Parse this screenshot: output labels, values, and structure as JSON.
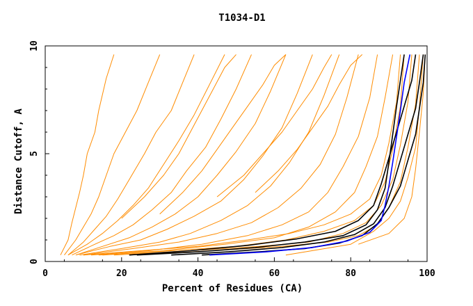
{
  "chart_data": {
    "type": "line",
    "title": "T1034-D1",
    "xlabel": "Percent of Residues (CA)",
    "ylabel": "Distance Cutoff, A",
    "xlim": [
      0,
      100
    ],
    "ylim": [
      0,
      10
    ],
    "x_ticks": [
      "0",
      "20",
      "40",
      "60",
      "80",
      "100"
    ],
    "y_ticks": [
      "0",
      "5",
      "10"
    ],
    "grid": false,
    "colors": {
      "background_models": "#ff8c00",
      "highlight_blue": "#0000ff",
      "highlight_black": "#000000"
    },
    "series": [
      {
        "color": "#ff8c00",
        "x": [
          4,
          6,
          7,
          8,
          9,
          10,
          11,
          13,
          14,
          16,
          18
        ],
        "y": [
          0.3,
          1,
          1.8,
          2.5,
          3.2,
          4,
          5,
          6,
          7,
          8.5,
          9.6
        ]
      },
      {
        "color": "#ff8c00",
        "x": [
          5,
          8,
          10,
          12,
          14,
          16,
          18,
          21,
          24,
          27,
          30
        ],
        "y": [
          0.3,
          1,
          1.6,
          2.2,
          3,
          4,
          5,
          6,
          7,
          8.3,
          9.6
        ]
      },
      {
        "color": "#ff8c00",
        "x": [
          6,
          10,
          13,
          16,
          19,
          22,
          26,
          29,
          33,
          36,
          39
        ],
        "y": [
          0.3,
          0.9,
          1.5,
          2.1,
          2.9,
          3.8,
          5,
          6,
          7,
          8.3,
          9.6
        ]
      },
      {
        "color": "#ff8c00",
        "x": [
          6,
          11,
          15,
          19,
          23,
          27,
          31,
          35,
          39,
          43,
          47
        ],
        "y": [
          0.3,
          0.8,
          1.3,
          1.9,
          2.6,
          3.4,
          4.5,
          5.6,
          6.8,
          8.2,
          9.6
        ]
      },
      {
        "color": "#ff8c00",
        "x": [
          7,
          13,
          18,
          23,
          28,
          33,
          37,
          42,
          46,
          50,
          54
        ],
        "y": [
          0.3,
          0.8,
          1.2,
          1.7,
          2.4,
          3.2,
          4.2,
          5.3,
          6.6,
          8,
          9.6
        ]
      },
      {
        "color": "#ff8c00",
        "x": [
          8,
          15,
          22,
          28,
          34,
          40,
          45,
          50,
          55,
          59,
          63
        ],
        "y": [
          0.3,
          0.7,
          1.1,
          1.6,
          2.2,
          3,
          4,
          5.1,
          6.4,
          7.9,
          9.6
        ]
      },
      {
        "color": "#ff8c00",
        "x": [
          8,
          17,
          25,
          32,
          39,
          46,
          52,
          57,
          62,
          66,
          70
        ],
        "y": [
          0.3,
          0.7,
          1,
          1.5,
          2.1,
          2.8,
          3.8,
          4.9,
          6.2,
          7.8,
          9.6
        ]
      },
      {
        "color": "#ff8c00",
        "x": [
          9,
          20,
          30,
          38,
          46,
          53,
          59,
          64,
          69,
          73,
          77
        ],
        "y": [
          0.3,
          0.6,
          0.9,
          1.3,
          1.9,
          2.6,
          3.5,
          4.6,
          6,
          7.7,
          9.6
        ]
      },
      {
        "color": "#ff8c00",
        "x": [
          10,
          23,
          35,
          45,
          54,
          61,
          67,
          72,
          76,
          79,
          82
        ],
        "y": [
          0.3,
          0.6,
          0.9,
          1.3,
          1.8,
          2.5,
          3.4,
          4.5,
          5.9,
          7.6,
          9.6
        ]
      },
      {
        "color": "#ff8c00",
        "x": [
          12,
          27,
          41,
          53,
          62,
          69,
          74,
          78,
          82,
          85,
          87
        ],
        "y": [
          0.3,
          0.5,
          0.8,
          1.2,
          1.7,
          2.3,
          3.2,
          4.4,
          5.8,
          7.6,
          9.6
        ]
      },
      {
        "color": "#ff8c00",
        "x": [
          14,
          31,
          47,
          60,
          69,
          76,
          81,
          84,
          87,
          89,
          91
        ],
        "y": [
          0.3,
          0.5,
          0.8,
          1.1,
          1.6,
          2.3,
          3.2,
          4.4,
          5.8,
          7.6,
          9.6
        ]
      },
      {
        "color": "#ff8c00",
        "x": [
          10,
          25,
          40,
          53,
          64,
          73,
          80,
          85,
          88,
          90,
          92,
          93
        ],
        "y": [
          0.3,
          0.5,
          0.7,
          1,
          1.3,
          1.7,
          2.2,
          2.9,
          4,
          5.5,
          7.4,
          9.6
        ]
      },
      {
        "color": "#ff8c00",
        "x": [
          15,
          33,
          50,
          63,
          73,
          81,
          86,
          89,
          91,
          93,
          94
        ],
        "y": [
          0.3,
          0.5,
          0.7,
          1,
          1.4,
          1.9,
          2.6,
          3.7,
          5.2,
          7.2,
          9.6
        ]
      },
      {
        "color": "#ff8c00",
        "x": [
          18,
          38,
          56,
          69,
          78,
          84,
          88,
          91,
          93,
          95,
          96
        ],
        "y": [
          0.3,
          0.5,
          0.7,
          0.9,
          1.3,
          1.8,
          2.6,
          3.8,
          5.4,
          7.4,
          9.6
        ]
      },
      {
        "color": "#ff8c00",
        "x": [
          22,
          44,
          62,
          74,
          82,
          87,
          90,
          93,
          95,
          97,
          98
        ],
        "y": [
          0.3,
          0.5,
          0.7,
          0.9,
          1.2,
          1.7,
          2.5,
          3.7,
          5.3,
          7.3,
          9.6
        ]
      },
      {
        "color": "#ff8c00",
        "x": [
          63,
          80,
          86,
          90,
          93,
          95,
          97,
          98,
          99
        ],
        "y": [
          0.3,
          0.8,
          1.4,
          2,
          2.8,
          3.9,
          5.3,
          7.2,
          9.6
        ]
      },
      {
        "color": "#ff8c00",
        "x": [
          82,
          90,
          94,
          96,
          97,
          98,
          99,
          99.5
        ],
        "y": [
          0.8,
          1.3,
          2,
          3,
          4.3,
          6,
          7.8,
          9.6
        ]
      },
      {
        "color": "#ff8c00",
        "x": [
          20,
          26,
          31,
          35,
          38,
          41,
          44,
          47,
          50
        ],
        "y": [
          2,
          3,
          4,
          5,
          6,
          7,
          8,
          9,
          9.6
        ]
      },
      {
        "color": "#ff8c00",
        "x": [
          30,
          36,
          41,
          45,
          49,
          53,
          57,
          60,
          63
        ],
        "y": [
          2.2,
          3.2,
          4.2,
          5.2,
          6.2,
          7.2,
          8.2,
          9.1,
          9.6
        ]
      },
      {
        "color": "#ff8c00",
        "x": [
          45,
          52,
          57,
          62,
          66,
          70,
          73,
          75
        ],
        "y": [
          3,
          4,
          5,
          6,
          7,
          8,
          9,
          9.6
        ]
      },
      {
        "color": "#ff8c00",
        "x": [
          55,
          61,
          66,
          70,
          74,
          77,
          80,
          83
        ],
        "y": [
          3.2,
          4.2,
          5.2,
          6.2,
          7.2,
          8.2,
          9.1,
          9.6
        ]
      },
      {
        "color": "#000000",
        "x": [
          24,
          40,
          55,
          68,
          78,
          84,
          87,
          89,
          90,
          91,
          92,
          93,
          94
        ],
        "y": [
          0.3,
          0.45,
          0.65,
          0.9,
          1.2,
          1.7,
          2.4,
          3.4,
          4.6,
          5.9,
          7.2,
          8.4,
          9.6
        ]
      },
      {
        "color": "#000000",
        "x": [
          22,
          38,
          53,
          66,
          76,
          82,
          86,
          88,
          90,
          92,
          94,
          96,
          97
        ],
        "y": [
          0.3,
          0.5,
          0.75,
          1.05,
          1.4,
          1.9,
          2.6,
          3.6,
          4.8,
          6,
          7.2,
          8.4,
          9.6
        ]
      },
      {
        "color": "#000000",
        "x": [
          33,
          48,
          62,
          73,
          81,
          86,
          89,
          91,
          93,
          95,
          97,
          98,
          99
        ],
        "y": [
          0.3,
          0.45,
          0.65,
          0.9,
          1.25,
          1.75,
          2.5,
          3.5,
          4.7,
          5.9,
          7.1,
          8.3,
          9.6
        ]
      },
      {
        "color": "#000000",
        "x": [
          41,
          56,
          68,
          77,
          83,
          87,
          90,
          93,
          95,
          97,
          98,
          99,
          99.5
        ],
        "y": [
          0.3,
          0.45,
          0.6,
          0.85,
          1.2,
          1.75,
          2.5,
          3.5,
          4.7,
          5.9,
          7.1,
          8.3,
          9.6
        ]
      },
      {
        "color": "#0000ff",
        "x": [
          43,
          58,
          70,
          79,
          85,
          88,
          89,
          90,
          91,
          92,
          93,
          94,
          95.5
        ],
        "y": [
          0.3,
          0.45,
          0.65,
          0.95,
          1.35,
          1.9,
          2.6,
          3.5,
          4.6,
          5.8,
          7,
          8.3,
          9.6
        ]
      }
    ]
  }
}
